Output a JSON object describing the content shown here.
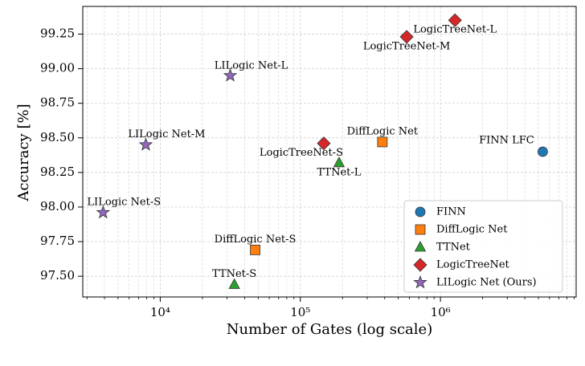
{
  "chart_data": {
    "type": "scatter",
    "xlabel": "Number of Gates (log scale)",
    "ylabel": "Accuracy [%]",
    "xscale": "log",
    "xlim": [
      2800,
      9300000
    ],
    "ylim": [
      97.35,
      99.45
    ],
    "xticks": [
      {
        "value": 10000,
        "label": "10⁴"
      },
      {
        "value": 100000,
        "label": "10⁵"
      },
      {
        "value": 1000000,
        "label": "10⁶"
      }
    ],
    "xminorticks": [
      3000,
      4000,
      5000,
      6000,
      7000,
      8000,
      9000,
      20000,
      30000,
      40000,
      50000,
      60000,
      70000,
      80000,
      90000,
      200000,
      300000,
      400000,
      500000,
      600000,
      700000,
      800000,
      900000,
      2000000,
      3000000,
      4000000,
      5000000,
      6000000,
      7000000,
      8000000,
      9000000
    ],
    "yticks": [
      {
        "value": 97.5,
        "label": "97.50"
      },
      97.75,
      {
        "value": 98.0,
        "label": "98.00"
      },
      98.25,
      {
        "value": 98.5,
        "label": "98.50"
      },
      98.75,
      {
        "value": 99.0,
        "label": "99.00"
      },
      99.25
    ],
    "grid": true,
    "legend_position": "lower right",
    "series": [
      {
        "name": "FINN",
        "color": "#1f77b4",
        "marker": "circle",
        "x": [
          5370000
        ],
        "values": [
          98.4
        ],
        "point_labels": [
          "FINN LFC"
        ]
      },
      {
        "name": "DiffLogic Net",
        "color": "#ff7f0e",
        "marker": "square",
        "x": [
          385000,
          47600
        ],
        "values": [
          98.47,
          97.69
        ],
        "point_labels": [
          "DiffLogic Net",
          "DiffLogic Net-S"
        ]
      },
      {
        "name": "TTNet",
        "color": "#2ca02c",
        "marker": "triangle",
        "x": [
          189000,
          33800
        ],
        "values": [
          98.32,
          97.44
        ],
        "point_labels": [
          "TTNet-L",
          "TTNet-S"
        ]
      },
      {
        "name": "LogicTreeNet",
        "color": "#d62728",
        "marker": "diamond",
        "x": [
          147000,
          574000,
          1270000
        ],
        "values": [
          98.46,
          99.23,
          99.35
        ],
        "point_labels": [
          "LogicTreeNet-S",
          "LogicTreeNet-M",
          "LogicTreeNet-L"
        ]
      },
      {
        "name": "LILogic Net (Ours)",
        "color": "#9467bd",
        "marker": "star",
        "x": [
          3910,
          7890,
          31600
        ],
        "values": [
          97.96,
          98.45,
          98.95
        ],
        "point_labels": [
          "LILogic Net-S",
          "LILogic Net-M",
          "LILogic Net-L"
        ]
      }
    ]
  }
}
